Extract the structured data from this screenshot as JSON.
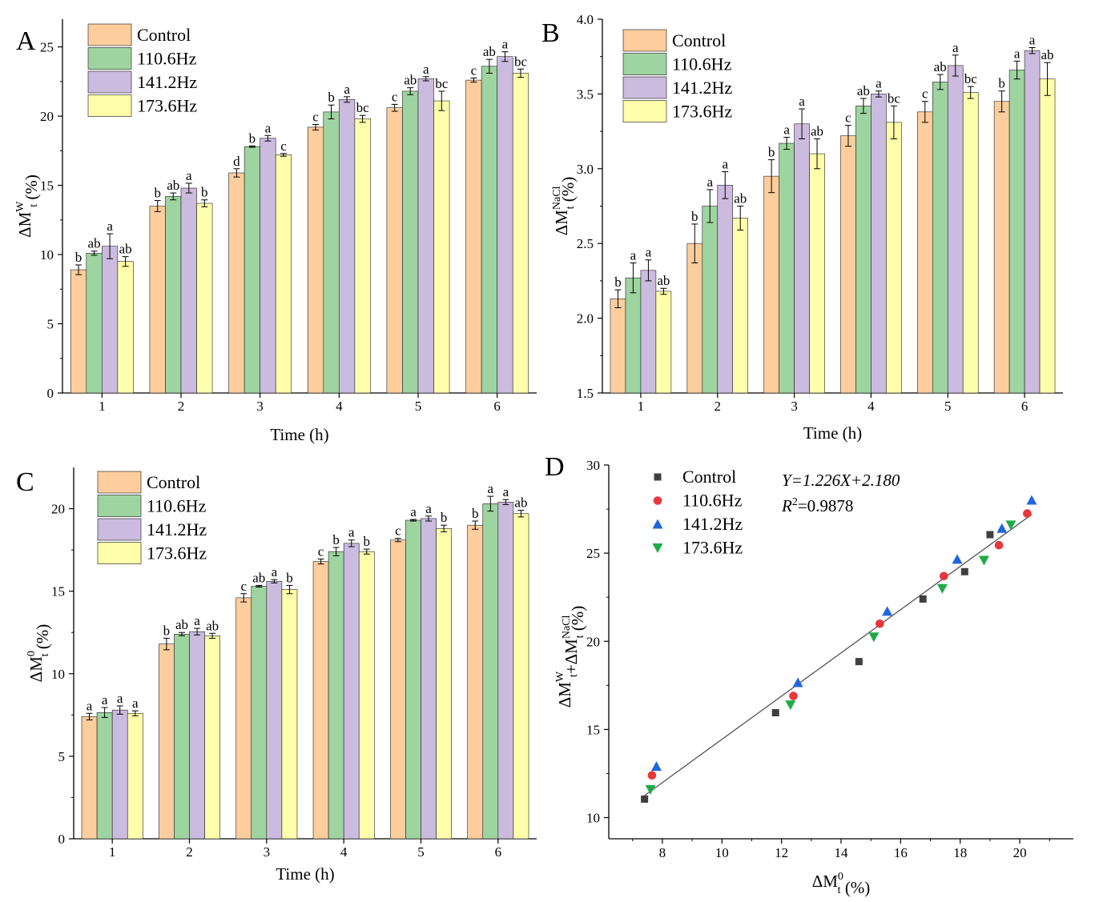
{
  "colors": {
    "Control": "#fdcd9d",
    "110.6Hz": "#9ed49f",
    "141.2Hz": "#cbbbdf",
    "173.6Hz": "#ffffab",
    "bar_stroke": "#222222",
    "scatter_Control": "#3f3f3f",
    "scatter_110.6Hz": "#e8363a",
    "scatter_141.2Hz": "#2166dd",
    "scatter_173.6Hz": "#1faa48",
    "fit_line": "#555555"
  },
  "chart_data": [
    {
      "panel": "A",
      "type": "bar",
      "xlabel": "Time (h)",
      "ylabel": {
        "base": "ΔM",
        "sub": "t",
        "sup": "W",
        "unit": " (%)"
      },
      "ylim": [
        0,
        27
      ],
      "yticks": [
        0,
        5,
        10,
        15,
        20,
        25
      ],
      "categories": [
        "1",
        "2",
        "3",
        "4",
        "5",
        "6"
      ],
      "series": [
        {
          "name": "Control",
          "values": [
            8.9,
            13.5,
            15.9,
            19.2,
            20.6,
            22.6
          ],
          "errors": [
            0.35,
            0.4,
            0.3,
            0.2,
            0.25,
            0.15
          ],
          "labels": [
            "b",
            "b",
            "d",
            "c",
            "c",
            "c"
          ]
        },
        {
          "name": "110.6Hz",
          "values": [
            10.1,
            14.2,
            17.8,
            20.3,
            21.8,
            23.6
          ],
          "errors": [
            0.15,
            0.25,
            0.05,
            0.5,
            0.25,
            0.5
          ],
          "labels": [
            "ab",
            "ab",
            "b",
            "b",
            "ab",
            "ab"
          ]
        },
        {
          "name": "141.2Hz",
          "values": [
            10.6,
            14.8,
            18.4,
            21.2,
            22.7,
            24.3
          ],
          "errors": [
            0.9,
            0.35,
            0.2,
            0.2,
            0.15,
            0.35
          ],
          "labels": [
            "a",
            "a",
            "a",
            "a",
            "a",
            "a"
          ]
        },
        {
          "name": "173.6Hz",
          "values": [
            9.5,
            13.7,
            17.2,
            19.8,
            21.1,
            23.1
          ],
          "errors": [
            0.35,
            0.25,
            0.1,
            0.25,
            0.7,
            0.3
          ],
          "labels": [
            "ab",
            "b",
            "c",
            "bc",
            "bc",
            "bc"
          ]
        }
      ]
    },
    {
      "panel": "B",
      "type": "bar",
      "xlabel": "Time (h)",
      "ylabel": {
        "base": "ΔM",
        "sub": "t",
        "sup": "NaCl",
        "unit": " (%)"
      },
      "ylim": [
        1.5,
        4.0
      ],
      "yticks": [
        1.5,
        2.0,
        2.5,
        3.0,
        3.5,
        4.0
      ],
      "categories": [
        "1",
        "2",
        "3",
        "4",
        "5",
        "6"
      ],
      "series": [
        {
          "name": "Control",
          "values": [
            2.13,
            2.5,
            2.95,
            3.22,
            3.38,
            3.45
          ],
          "errors": [
            0.06,
            0.13,
            0.11,
            0.07,
            0.07,
            0.07
          ],
          "labels": [
            "b",
            "b",
            "b",
            "c",
            "c",
            "b"
          ]
        },
        {
          "name": "110.6Hz",
          "values": [
            2.27,
            2.75,
            3.17,
            3.42,
            3.58,
            3.66
          ],
          "errors": [
            0.1,
            0.11,
            0.04,
            0.05,
            0.05,
            0.06
          ],
          "labels": [
            "a",
            "a",
            "a",
            "ab",
            "ab",
            "a"
          ]
        },
        {
          "name": "141.2Hz",
          "values": [
            2.32,
            2.89,
            3.3,
            3.5,
            3.69,
            3.79
          ],
          "errors": [
            0.07,
            0.09,
            0.1,
            0.02,
            0.07,
            0.02
          ],
          "labels": [
            "a",
            "a",
            "a",
            "a",
            "a",
            "a"
          ]
        },
        {
          "name": "173.6Hz",
          "values": [
            2.18,
            2.67,
            3.1,
            3.31,
            3.51,
            3.6
          ],
          "errors": [
            0.02,
            0.08,
            0.1,
            0.11,
            0.04,
            0.11
          ],
          "labels": [
            "ab",
            "ab",
            "ab",
            "bc",
            "bc",
            "ab"
          ]
        }
      ]
    },
    {
      "panel": "C",
      "type": "bar",
      "xlabel": "Time (h)",
      "ylabel": {
        "base": "ΔM",
        "sub": "t",
        "sup": "0",
        "unit": " (%)"
      },
      "ylim": [
        0,
        22.5
      ],
      "yticks": [
        0,
        5,
        10,
        15,
        20
      ],
      "categories": [
        "1",
        "2",
        "3",
        "4",
        "5",
        "6"
      ],
      "series": [
        {
          "name": "Control",
          "values": [
            7.4,
            11.8,
            14.6,
            16.8,
            18.1,
            19.0
          ],
          "errors": [
            0.2,
            0.35,
            0.25,
            0.15,
            0.1,
            0.25
          ],
          "labels": [
            "a",
            "b",
            "c",
            "c",
            "c",
            "b"
          ]
        },
        {
          "name": "110.6Hz",
          "values": [
            7.65,
            12.4,
            15.3,
            17.4,
            19.3,
            20.3
          ],
          "errors": [
            0.3,
            0.1,
            0.05,
            0.25,
            0.05,
            0.45
          ],
          "labels": [
            "a",
            "ab",
            "ab",
            "b",
            "a",
            "a"
          ]
        },
        {
          "name": "141.2Hz",
          "values": [
            7.8,
            12.55,
            15.6,
            17.9,
            19.4,
            20.4
          ],
          "errors": [
            0.25,
            0.2,
            0.1,
            0.2,
            0.15,
            0.15
          ],
          "labels": [
            "a",
            "a",
            "a",
            "a",
            "a",
            "a"
          ]
        },
        {
          "name": "173.6Hz",
          "values": [
            7.6,
            12.3,
            15.1,
            17.4,
            18.8,
            19.7
          ],
          "errors": [
            0.15,
            0.15,
            0.25,
            0.15,
            0.2,
            0.2
          ],
          "labels": [
            "a",
            "ab",
            "b",
            "b",
            "b",
            "ab"
          ]
        }
      ]
    },
    {
      "panel": "D",
      "type": "scatter",
      "xlabel": {
        "base": "ΔM",
        "sub": "t",
        "sup": "0",
        "unit": " (%)"
      },
      "ylabel": {
        "part1_base": "ΔM",
        "part1_sub": "t",
        "part1_sup": "W",
        "plus": "+",
        "part2_base": "ΔM",
        "part2_sub": "t",
        "part2_sup": "NaCl",
        "unit": " (%)"
      },
      "xlim": [
        6.2,
        21.8
      ],
      "ylim": [
        8.8,
        30
      ],
      "xticks": [
        8,
        10,
        12,
        14,
        16,
        18,
        20
      ],
      "yticks": [
        10,
        15,
        20,
        25,
        30
      ],
      "equation": {
        "line1": "Y=1.226X+2.180",
        "r2_prefix": "R",
        "r2_sup": "2",
        "r2_suffix": "=0.9878"
      },
      "fit": {
        "slope": 1.226,
        "intercept": 2.18,
        "x_range": [
          7.4,
          20.4
        ]
      },
      "series": [
        {
          "name": "Control",
          "marker": "square",
          "x": [
            7.4,
            11.8,
            14.6,
            16.75,
            18.15,
            19.0
          ],
          "y": [
            11.05,
            15.95,
            18.85,
            22.4,
            23.95,
            26.05
          ]
        },
        {
          "name": "110.6Hz",
          "marker": "circle",
          "x": [
            7.65,
            12.4,
            15.3,
            17.45,
            19.3,
            20.25
          ],
          "y": [
            12.4,
            16.9,
            21.0,
            23.7,
            25.45,
            27.25
          ]
        },
        {
          "name": "141.2Hz",
          "marker": "triangle-up",
          "x": [
            7.8,
            12.55,
            15.55,
            17.9,
            19.4,
            20.4
          ],
          "y": [
            12.9,
            17.65,
            21.7,
            24.65,
            26.4,
            28.0
          ]
        },
        {
          "name": "173.6Hz",
          "marker": "triangle-down",
          "x": [
            7.6,
            12.3,
            15.1,
            17.4,
            18.8,
            19.7
          ],
          "y": [
            11.6,
            16.4,
            20.25,
            23.0,
            24.6,
            26.6
          ]
        }
      ]
    }
  ]
}
